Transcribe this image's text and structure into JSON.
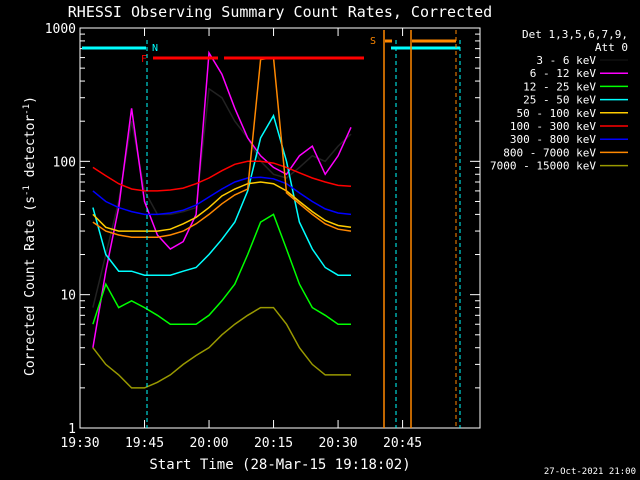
{
  "chart_data": {
    "type": "line",
    "title": "RHESSI Observing Summary Count Rates, Corrected",
    "xlabel": "Start Time (28-Mar-15 19:18:02)",
    "ylabel_main": "Corrected Count Rate (s",
    "ylabel_exp1": "-1",
    "ylabel_mid": " detector",
    "ylabel_exp2": "-1",
    "ylabel_end": ")",
    "y_scale": "log",
    "ylim": [
      1,
      1000
    ],
    "xlim_minutes": [
      19.5,
      21.05
    ],
    "x_tick_labels": [
      {
        "label": "19:30",
        "x": 19.5
      },
      {
        "label": "19:45",
        "x": 19.75
      },
      {
        "label": "20:00",
        "x": 20.0
      },
      {
        "label": "20:15",
        "x": 20.25
      },
      {
        "label": "20:30",
        "x": 20.5
      },
      {
        "label": "20:45",
        "x": 20.75
      }
    ],
    "y_tick_labels": [
      {
        "label": "1",
        "y": 1
      },
      {
        "label": "10",
        "y": 10
      },
      {
        "label": "100",
        "y": 100
      },
      {
        "label": "1000",
        "y": 1000
      }
    ],
    "legend_header": [
      "Det 1,3,5,6,7,9,",
      "Att 0"
    ],
    "legend_position": "right",
    "series": [
      {
        "name": "3 - 6 keV",
        "color": "#000000",
        "points": [
          [
            19.55,
            8
          ],
          [
            19.6,
            20
          ],
          [
            19.65,
            50
          ],
          [
            19.7,
            200
          ],
          [
            19.75,
            60
          ],
          [
            19.8,
            40
          ],
          [
            19.85,
            40
          ],
          [
            19.9,
            42
          ],
          [
            19.95,
            45
          ],
          [
            20.0,
            350
          ],
          [
            20.05,
            300
          ],
          [
            20.1,
            200
          ],
          [
            20.15,
            150
          ],
          [
            20.2,
            100
          ],
          [
            20.25,
            80
          ],
          [
            20.3,
            75
          ],
          [
            20.35,
            90
          ],
          [
            20.4,
            110
          ],
          [
            20.45,
            100
          ],
          [
            20.5,
            130
          ],
          [
            20.55,
            160
          ]
        ]
      },
      {
        "name": "6 - 12 keV",
        "color": "#ff00ff",
        "points": [
          [
            19.55,
            4
          ],
          [
            19.6,
            15
          ],
          [
            19.65,
            45
          ],
          [
            19.7,
            250
          ],
          [
            19.75,
            50
          ],
          [
            19.8,
            28
          ],
          [
            19.85,
            22
          ],
          [
            19.9,
            25
          ],
          [
            19.95,
            40
          ],
          [
            20.0,
            650
          ],
          [
            20.05,
            450
          ],
          [
            20.1,
            250
          ],
          [
            20.15,
            150
          ],
          [
            20.2,
            110
          ],
          [
            20.25,
            90
          ],
          [
            20.3,
            80
          ],
          [
            20.35,
            110
          ],
          [
            20.4,
            130
          ],
          [
            20.45,
            80
          ],
          [
            20.5,
            110
          ],
          [
            20.55,
            180
          ]
        ]
      },
      {
        "name": "12 - 25 keV",
        "color": "#00ff00",
        "points": [
          [
            19.55,
            6
          ],
          [
            19.6,
            12
          ],
          [
            19.65,
            8
          ],
          [
            19.7,
            9
          ],
          [
            19.75,
            8
          ],
          [
            19.8,
            7
          ],
          [
            19.85,
            6
          ],
          [
            19.9,
            6
          ],
          [
            19.95,
            6
          ],
          [
            20.0,
            7
          ],
          [
            20.05,
            9
          ],
          [
            20.1,
            12
          ],
          [
            20.15,
            20
          ],
          [
            20.2,
            35
          ],
          [
            20.25,
            40
          ],
          [
            20.3,
            22
          ],
          [
            20.35,
            12
          ],
          [
            20.4,
            8
          ],
          [
            20.45,
            7
          ],
          [
            20.5,
            6
          ],
          [
            20.55,
            6
          ]
        ]
      },
      {
        "name": "25 - 50 keV",
        "color": "#00ffff",
        "points": [
          [
            19.55,
            45
          ],
          [
            19.6,
            20
          ],
          [
            19.65,
            15
          ],
          [
            19.7,
            15
          ],
          [
            19.75,
            14
          ],
          [
            19.8,
            14
          ],
          [
            19.85,
            14
          ],
          [
            19.9,
            15
          ],
          [
            19.95,
            16
          ],
          [
            20.0,
            20
          ],
          [
            20.05,
            26
          ],
          [
            20.1,
            35
          ],
          [
            20.15,
            60
          ],
          [
            20.2,
            150
          ],
          [
            20.25,
            220
          ],
          [
            20.3,
            100
          ],
          [
            20.35,
            35
          ],
          [
            20.4,
            22
          ],
          [
            20.45,
            16
          ],
          [
            20.5,
            14
          ],
          [
            20.55,
            14
          ]
        ]
      },
      {
        "name": "50 - 100 keV",
        "color": "#ffcc00",
        "points": [
          [
            19.55,
            40
          ],
          [
            19.6,
            32
          ],
          [
            19.65,
            30
          ],
          [
            19.7,
            30
          ],
          [
            19.75,
            30
          ],
          [
            19.8,
            30
          ],
          [
            19.85,
            31
          ],
          [
            19.9,
            34
          ],
          [
            19.95,
            38
          ],
          [
            20.0,
            45
          ],
          [
            20.05,
            55
          ],
          [
            20.1,
            62
          ],
          [
            20.15,
            68
          ],
          [
            20.2,
            70
          ],
          [
            20.25,
            68
          ],
          [
            20.3,
            60
          ],
          [
            20.35,
            50
          ],
          [
            20.4,
            42
          ],
          [
            20.45,
            36
          ],
          [
            20.5,
            33
          ],
          [
            20.55,
            32
          ]
        ]
      },
      {
        "name": "100 - 300 keV",
        "color": "#ff0000",
        "points": [
          [
            19.55,
            90
          ],
          [
            19.6,
            78
          ],
          [
            19.65,
            68
          ],
          [
            19.7,
            62
          ],
          [
            19.75,
            60
          ],
          [
            19.8,
            60
          ],
          [
            19.85,
            61
          ],
          [
            19.9,
            63
          ],
          [
            19.95,
            68
          ],
          [
            20.0,
            75
          ],
          [
            20.05,
            85
          ],
          [
            20.1,
            95
          ],
          [
            20.15,
            100
          ],
          [
            20.2,
            100
          ],
          [
            20.25,
            97
          ],
          [
            20.3,
            90
          ],
          [
            20.35,
            82
          ],
          [
            20.4,
            75
          ],
          [
            20.45,
            70
          ],
          [
            20.5,
            66
          ],
          [
            20.55,
            65
          ]
        ]
      },
      {
        "name": "300 - 800 keV",
        "color": "#0000ff",
        "points": [
          [
            19.55,
            60
          ],
          [
            19.6,
            50
          ],
          [
            19.65,
            45
          ],
          [
            19.7,
            42
          ],
          [
            19.75,
            40
          ],
          [
            19.8,
            40
          ],
          [
            19.85,
            41
          ],
          [
            19.9,
            43
          ],
          [
            19.95,
            47
          ],
          [
            20.0,
            54
          ],
          [
            20.05,
            62
          ],
          [
            20.1,
            70
          ],
          [
            20.15,
            75
          ],
          [
            20.2,
            76
          ],
          [
            20.25,
            74
          ],
          [
            20.3,
            68
          ],
          [
            20.35,
            58
          ],
          [
            20.4,
            50
          ],
          [
            20.45,
            44
          ],
          [
            20.5,
            41
          ],
          [
            20.55,
            40
          ]
        ]
      },
      {
        "name": "800 - 7000 keV",
        "color": "#ff8800",
        "points": [
          [
            19.55,
            35
          ],
          [
            19.6,
            30
          ],
          [
            19.65,
            28
          ],
          [
            19.7,
            27
          ],
          [
            19.75,
            27
          ],
          [
            19.8,
            27
          ],
          [
            19.85,
            28
          ],
          [
            19.9,
            30
          ],
          [
            19.95,
            34
          ],
          [
            20.0,
            40
          ],
          [
            20.05,
            48
          ],
          [
            20.1,
            56
          ],
          [
            20.15,
            62
          ],
          [
            20.2,
            580
          ],
          [
            20.25,
            600
          ],
          [
            20.3,
            58
          ],
          [
            20.35,
            48
          ],
          [
            20.4,
            40
          ],
          [
            20.45,
            34
          ],
          [
            20.5,
            31
          ],
          [
            20.55,
            30
          ]
        ]
      },
      {
        "name": "7000 - 15000 keV",
        "color": "#999900",
        "points": [
          [
            19.55,
            4
          ],
          [
            19.6,
            3
          ],
          [
            19.65,
            2.5
          ],
          [
            19.7,
            2
          ],
          [
            19.75,
            2
          ],
          [
            19.8,
            2.2
          ],
          [
            19.85,
            2.5
          ],
          [
            19.9,
            3
          ],
          [
            19.95,
            3.5
          ],
          [
            20.0,
            4
          ],
          [
            20.05,
            5
          ],
          [
            20.1,
            6
          ],
          [
            20.15,
            7
          ],
          [
            20.2,
            8
          ],
          [
            20.25,
            8
          ],
          [
            20.3,
            6
          ],
          [
            20.35,
            4
          ],
          [
            20.4,
            3
          ],
          [
            20.45,
            2.5
          ],
          [
            20.5,
            2.5
          ],
          [
            20.55,
            2.5
          ]
        ]
      }
    ],
    "flag_labels": {
      "flare": "F",
      "night": "N",
      "saa": "S"
    },
    "timestamp": "27-Oct-2021 21:00"
  }
}
